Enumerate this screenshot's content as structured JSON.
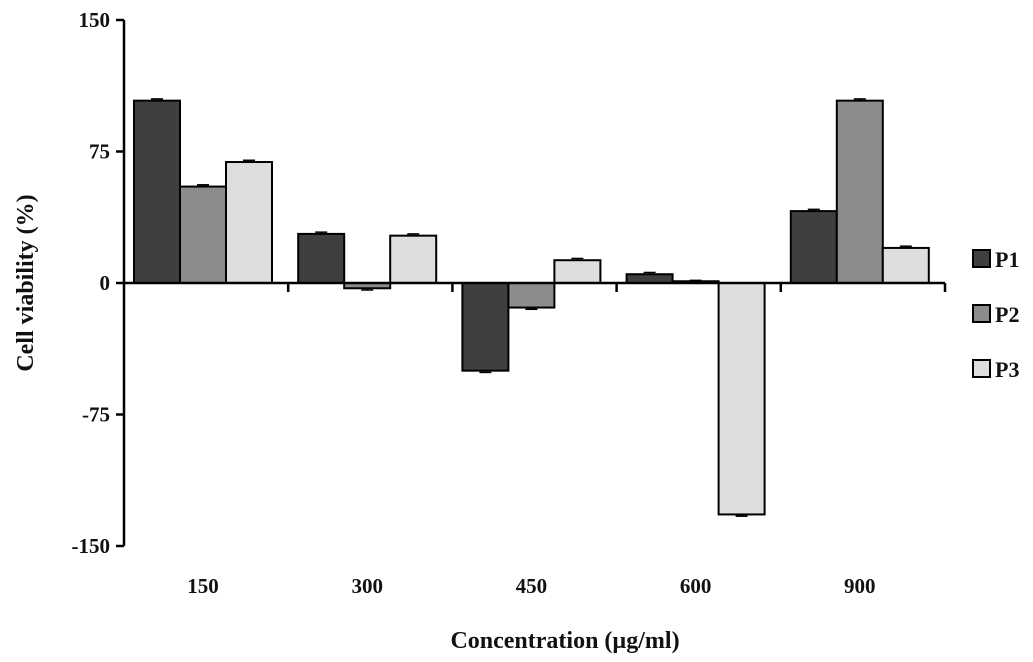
{
  "chart_data": {
    "type": "bar",
    "title": "",
    "xlabel": "Concentration (µg/ml)",
    "ylabel": "Cell viability (%)",
    "categories": [
      "150",
      "300",
      "450",
      "600",
      "900"
    ],
    "ylim": [
      -150,
      150
    ],
    "yticks": [
      "150",
      "75",
      "0",
      "-75",
      "-150"
    ],
    "yticks_values": [
      150,
      75,
      0,
      -75,
      -150
    ],
    "grid": false,
    "legend_position": "right",
    "error_bars": true,
    "series": [
      {
        "name": "P1",
        "color": "#3f3f3f",
        "values": [
          104,
          28,
          -50,
          5,
          41
        ],
        "errors": [
          1,
          1,
          1,
          1,
          1
        ]
      },
      {
        "name": "P2",
        "color": "#8c8c8c",
        "values": [
          55,
          -3,
          -14,
          1,
          104
        ],
        "errors": [
          1,
          1,
          1,
          0.5,
          1
        ]
      },
      {
        "name": "P3",
        "color": "#dedede",
        "values": [
          69,
          27,
          13,
          -132,
          20
        ],
        "errors": [
          1,
          1,
          1,
          1,
          1
        ]
      }
    ]
  }
}
